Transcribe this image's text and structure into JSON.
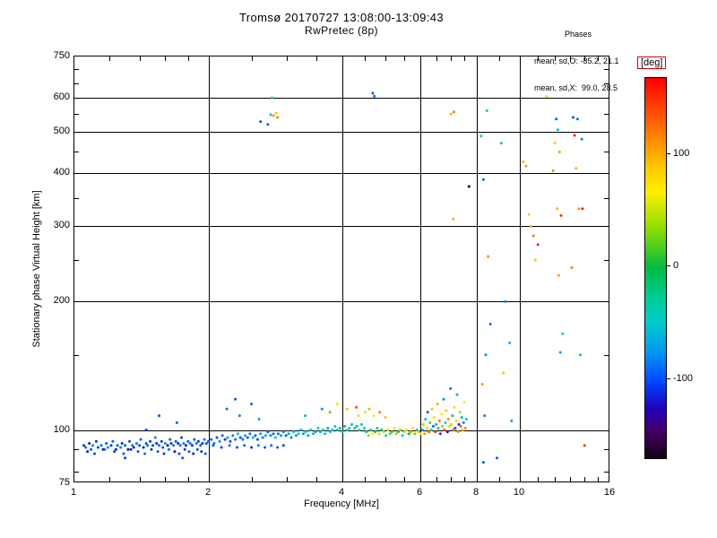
{
  "header": {
    "title": "Tromsø 20170727 13:08:00-13:09:43",
    "subtitle": "RwPretec (8p)"
  },
  "stats": {
    "title": "Phases",
    "line_o": "mean, sd,O: -85.2, 21.1",
    "line_x": "mean, sd,X:  99.0, 28.5"
  },
  "chart_data": {
    "type": "scatter",
    "title": "Tromsø 20170727 13:08:00-13:09:43",
    "subtitle": "RwPretec (8p)",
    "xlabel": "Frequency [MHz]",
    "ylabel": "Stationary phase Virtual Height [km]",
    "x_scale": "log",
    "y_scale": "log",
    "xlim": [
      1,
      16
    ],
    "ylim": [
      75,
      750
    ],
    "x_ticks": [
      1,
      2,
      4,
      6,
      8,
      10,
      16
    ],
    "y_ticks": [
      750,
      600,
      500,
      400,
      300,
      200,
      100,
      75
    ],
    "grid_x": [
      2,
      4,
      6,
      8,
      10
    ],
    "grid_y": [
      100,
      200,
      300,
      400,
      500,
      600
    ],
    "x_minor": [
      1.2,
      1.4,
      1.6,
      1.8,
      2.5,
      3,
      3.5,
      4.5,
      5,
      5.5,
      6.5,
      7,
      7.5,
      9,
      11,
      12,
      13,
      14,
      15
    ],
    "y_minor": [
      80,
      90,
      150,
      250,
      350,
      450,
      550,
      650,
      700
    ],
    "grid": true,
    "legend_position": "none",
    "colorbar": {
      "label": "[deg]",
      "ticks": [
        100,
        0,
        -100
      ],
      "vmin": -172,
      "vmax": 168,
      "stops": [
        {
          "t": 0.0,
          "c": "#ff0000"
        },
        {
          "t": 0.08,
          "c": "#ff4400"
        },
        {
          "t": 0.16,
          "c": "#ff8800"
        },
        {
          "t": 0.24,
          "c": "#ffcc00"
        },
        {
          "t": 0.3,
          "c": "#ffee00"
        },
        {
          "t": 0.4,
          "c": "#88dd00"
        },
        {
          "t": 0.5,
          "c": "#00bb44"
        },
        {
          "t": 0.58,
          "c": "#00cc99"
        },
        {
          "t": 0.64,
          "c": "#00cccc"
        },
        {
          "t": 0.72,
          "c": "#0099ee"
        },
        {
          "t": 0.8,
          "c": "#0044ff"
        },
        {
          "t": 0.87,
          "c": "#2200bb"
        },
        {
          "t": 0.93,
          "c": "#440066"
        },
        {
          "t": 1.0,
          "c": "#140014"
        }
      ]
    },
    "points_format": [
      "frequency_MHz",
      "virtual_height_km",
      "phase_deg"
    ],
    "points": [
      [
        1.05,
        92,
        -110
      ],
      [
        1.06,
        91,
        -95
      ],
      [
        1.08,
        93,
        -120
      ],
      [
        1.09,
        90,
        -100
      ],
      [
        1.1,
        92,
        -85
      ],
      [
        1.12,
        94,
        -115
      ],
      [
        1.13,
        91,
        -105
      ],
      [
        1.15,
        92,
        -90
      ],
      [
        1.16,
        90,
        -125
      ],
      [
        1.18,
        93,
        -100
      ],
      [
        1.19,
        91,
        -80
      ],
      [
        1.21,
        92,
        -110
      ],
      [
        1.22,
        94,
        -95
      ],
      [
        1.24,
        90,
        -120
      ],
      [
        1.25,
        92,
        -100
      ],
      [
        1.27,
        91,
        -88
      ],
      [
        1.28,
        93,
        -112
      ],
      [
        1.3,
        92,
        -98
      ],
      [
        1.32,
        90,
        -130
      ],
      [
        1.33,
        94,
        -105
      ],
      [
        1.35,
        92,
        -92
      ],
      [
        1.36,
        91,
        -115
      ],
      [
        1.38,
        93,
        -85
      ],
      [
        1.4,
        92,
        -108
      ],
      [
        1.41,
        95,
        -96
      ],
      [
        1.43,
        91,
        -122
      ],
      [
        1.45,
        93,
        -100
      ],
      [
        1.46,
        92,
        -90
      ],
      [
        1.48,
        94,
        -112
      ],
      [
        1.5,
        92,
        -104
      ],
      [
        1.52,
        96,
        -86
      ],
      [
        1.53,
        93,
        -118
      ],
      [
        1.55,
        92,
        -95
      ],
      [
        1.57,
        94,
        -108
      ],
      [
        1.58,
        91,
        -100
      ],
      [
        1.6,
        93,
        -80
      ],
      [
        1.62,
        92,
        -125
      ],
      [
        1.64,
        95,
        -98
      ],
      [
        1.65,
        93,
        -110
      ],
      [
        1.67,
        92,
        -88
      ],
      [
        1.69,
        94,
        -102
      ],
      [
        1.71,
        93,
        -116
      ],
      [
        1.73,
        92,
        -94
      ],
      [
        1.74,
        96,
        -106
      ],
      [
        1.76,
        93,
        -84
      ],
      [
        1.78,
        92,
        -120
      ],
      [
        1.8,
        94,
        -100
      ],
      [
        1.82,
        93,
        -92
      ],
      [
        1.84,
        92,
        -112
      ],
      [
        1.86,
        95,
        -98
      ],
      [
        1.88,
        93,
        -86
      ],
      [
        1.9,
        94,
        -108
      ],
      [
        1.92,
        92,
        -96
      ],
      [
        1.94,
        93,
        -118
      ],
      [
        1.96,
        95,
        -90
      ],
      [
        1.98,
        93,
        -104
      ],
      [
        2.0,
        94,
        -98
      ],
      [
        1.07,
        89,
        -118
      ],
      [
        1.11,
        88,
        -102
      ],
      [
        1.17,
        90,
        -95
      ],
      [
        1.23,
        89,
        -112
      ],
      [
        1.29,
        88,
        -98
      ],
      [
        1.34,
        90,
        -120
      ],
      [
        1.39,
        89,
        -104
      ],
      [
        1.44,
        88,
        -92
      ],
      [
        1.49,
        90,
        -115
      ],
      [
        1.54,
        89,
        -100
      ],
      [
        1.59,
        88,
        -108
      ],
      [
        1.63,
        90,
        -96
      ],
      [
        1.68,
        89,
        -122
      ],
      [
        1.72,
        88,
        -102
      ],
      [
        1.77,
        90,
        -110
      ],
      [
        1.81,
        89,
        -94
      ],
      [
        1.85,
        88,
        -116
      ],
      [
        1.89,
        90,
        -100
      ],
      [
        1.93,
        89,
        -108
      ],
      [
        1.97,
        88,
        -96
      ],
      [
        2.03,
        95,
        -100
      ],
      [
        2.06,
        93,
        -90
      ],
      [
        2.09,
        96,
        -105
      ],
      [
        2.12,
        94,
        -80
      ],
      [
        2.15,
        97,
        -95
      ],
      [
        2.18,
        95,
        -110
      ],
      [
        2.21,
        96,
        -70
      ],
      [
        2.24,
        94,
        -100
      ],
      [
        2.27,
        97,
        -85
      ],
      [
        2.3,
        95,
        -95
      ],
      [
        2.33,
        98,
        -60
      ],
      [
        2.36,
        96,
        -105
      ],
      [
        2.39,
        95,
        -90
      ],
      [
        2.42,
        97,
        -75
      ],
      [
        2.45,
        96,
        -100
      ],
      [
        2.48,
        98,
        -88
      ],
      [
        2.52,
        96,
        -65
      ],
      [
        2.55,
        97,
        -95
      ],
      [
        2.58,
        95,
        -105
      ],
      [
        2.62,
        98,
        -80
      ],
      [
        2.65,
        96,
        -92
      ],
      [
        2.69,
        97,
        -70
      ],
      [
        2.72,
        99,
        -100
      ],
      [
        2.76,
        97,
        -85
      ],
      [
        2.8,
        98,
        -95
      ],
      [
        2.83,
        96,
        -60
      ],
      [
        2.87,
        98,
        -90
      ],
      [
        2.91,
        97,
        -75
      ],
      [
        2.95,
        99,
        -88
      ],
      [
        2.99,
        97,
        -95
      ],
      [
        2.05,
        92,
        -98
      ],
      [
        2.14,
        91,
        -104
      ],
      [
        2.23,
        92,
        -88
      ],
      [
        2.32,
        91,
        -100
      ],
      [
        2.41,
        92,
        -95
      ],
      [
        2.5,
        91,
        -108
      ],
      [
        2.59,
        92,
        -85
      ],
      [
        2.68,
        91,
        -100
      ],
      [
        2.77,
        92,
        -92
      ],
      [
        2.86,
        91,
        -98
      ],
      [
        2.95,
        92,
        -105
      ],
      [
        1.3,
        86,
        -105
      ],
      [
        1.75,
        86,
        -100
      ],
      [
        1.45,
        100,
        -110
      ],
      [
        1.55,
        108,
        -100
      ],
      [
        1.7,
        104,
        -95
      ],
      [
        2.2,
        112,
        -90
      ],
      [
        2.3,
        118,
        -100
      ],
      [
        2.35,
        108,
        -85
      ],
      [
        2.5,
        115,
        -95
      ],
      [
        2.6,
        106,
        -70
      ],
      [
        3.3,
        108,
        -60
      ],
      [
        3.6,
        112,
        -80
      ],
      [
        3.75,
        110,
        20
      ],
      [
        3.9,
        115,
        60
      ],
      [
        4.1,
        112,
        90
      ],
      [
        4.3,
        113,
        140
      ],
      [
        4.35,
        108,
        80
      ],
      [
        4.5,
        110,
        50
      ],
      [
        4.6,
        112,
        100
      ],
      [
        4.7,
        108,
        70
      ],
      [
        4.85,
        110,
        120
      ],
      [
        5.0,
        107,
        90
      ],
      [
        3.03,
        98,
        -70
      ],
      [
        3.07,
        96,
        -85
      ],
      [
        3.11,
        99,
        -55
      ],
      [
        3.15,
        97,
        -75
      ],
      [
        3.19,
        98,
        -40
      ],
      [
        3.23,
        100,
        -65
      ],
      [
        3.27,
        98,
        -80
      ],
      [
        3.31,
        99,
        -50
      ],
      [
        3.35,
        97,
        -70
      ],
      [
        3.4,
        100,
        -30
      ],
      [
        3.44,
        98,
        -60
      ],
      [
        3.48,
        99,
        -75
      ],
      [
        3.53,
        101,
        -45
      ],
      [
        3.57,
        99,
        -65
      ],
      [
        3.62,
        100,
        -20
      ],
      [
        3.66,
        98,
        -55
      ],
      [
        3.71,
        101,
        -70
      ],
      [
        3.76,
        99,
        -35
      ],
      [
        3.8,
        100,
        -60
      ],
      [
        3.85,
        102,
        -50
      ],
      [
        3.9,
        100,
        -25
      ],
      [
        3.95,
        101,
        -65
      ],
      [
        4.0,
        99,
        -45
      ],
      [
        4.05,
        102,
        -10
      ],
      [
        4.1,
        100,
        -55
      ],
      [
        4.15,
        101,
        -30
      ],
      [
        4.2,
        103,
        -60
      ],
      [
        4.26,
        101,
        -40
      ],
      [
        4.31,
        102,
        0
      ],
      [
        4.37,
        100,
        -50
      ],
      [
        4.42,
        103,
        -20
      ],
      [
        4.48,
        101,
        -35
      ],
      [
        4.53,
        99,
        -20
      ],
      [
        4.58,
        97,
        40
      ],
      [
        4.63,
        100,
        -45
      ],
      [
        4.68,
        98,
        70
      ],
      [
        4.74,
        99,
        10
      ],
      [
        4.79,
        101,
        -30
      ],
      [
        4.84,
        98,
        90
      ],
      [
        4.9,
        100,
        -10
      ],
      [
        4.95,
        99,
        50
      ],
      [
        5.01,
        97,
        -40
      ],
      [
        5.06,
        100,
        80
      ],
      [
        5.12,
        98,
        20
      ],
      [
        5.17,
        99,
        -25
      ],
      [
        5.23,
        101,
        60
      ],
      [
        5.28,
        98,
        100
      ],
      [
        5.34,
        99,
        -15
      ],
      [
        5.4,
        100,
        35
      ],
      [
        5.46,
        97,
        -50
      ],
      [
        5.52,
        99,
        85
      ],
      [
        5.58,
        100,
        55
      ],
      [
        5.64,
        98,
        -5
      ],
      [
        5.7,
        99,
        110
      ],
      [
        5.76,
        101,
        75
      ],
      [
        5.82,
        98,
        25
      ],
      [
        5.88,
        100,
        -35
      ],
      [
        5.94,
        99,
        95
      ],
      [
        6.0,
        98,
        65
      ],
      [
        6.05,
        100,
        -80
      ],
      [
        6.08,
        103,
        40
      ],
      [
        6.12,
        98,
        110
      ],
      [
        6.15,
        106,
        -60
      ],
      [
        6.19,
        101,
        80
      ],
      [
        6.22,
        110,
        -100
      ],
      [
        6.26,
        99,
        130
      ],
      [
        6.29,
        104,
        20
      ],
      [
        6.33,
        100,
        -40
      ],
      [
        6.36,
        112,
        90
      ],
      [
        6.4,
        102,
        -90
      ],
      [
        6.43,
        107,
        60
      ],
      [
        6.47,
        99,
        150
      ],
      [
        6.5,
        103,
        -70
      ],
      [
        6.54,
        115,
        100
      ],
      [
        6.57,
        101,
        -20
      ],
      [
        6.61,
        105,
        120
      ],
      [
        6.64,
        98,
        -110
      ],
      [
        6.68,
        109,
        70
      ],
      [
        6.71,
        102,
        30
      ],
      [
        6.75,
        118,
        -80
      ],
      [
        6.78,
        100,
        140
      ],
      [
        6.82,
        104,
        -50
      ],
      [
        6.85,
        111,
        85
      ],
      [
        6.89,
        99,
        -120
      ],
      [
        6.92,
        106,
        110
      ],
      [
        6.96,
        102,
        50
      ],
      [
        7.0,
        125,
        -90
      ],
      [
        7.03,
        103,
        95
      ],
      [
        7.07,
        108,
        -30
      ],
      [
        7.1,
        100,
        125
      ],
      [
        7.14,
        113,
        60
      ],
      [
        7.17,
        101,
        -100
      ],
      [
        7.21,
        105,
        80
      ],
      [
        7.24,
        121,
        -70
      ],
      [
        7.28,
        99,
        105
      ],
      [
        7.31,
        103,
        -110
      ],
      [
        7.35,
        110,
        40
      ],
      [
        7.38,
        102,
        130
      ],
      [
        7.42,
        107,
        -60
      ],
      [
        7.45,
        100,
        90
      ],
      [
        7.49,
        104,
        -85
      ],
      [
        7.52,
        116,
        70
      ],
      [
        7.56,
        101,
        115
      ],
      [
        7.6,
        106,
        -45
      ],
      [
        2.62,
        528,
        -100
      ],
      [
        2.72,
        520,
        -95
      ],
      [
        2.76,
        548,
        -50
      ],
      [
        2.8,
        545,
        110
      ],
      [
        2.84,
        552,
        85
      ],
      [
        2.78,
        600,
        -55
      ],
      [
        2.86,
        540,
        120
      ],
      [
        4.68,
        615,
        -100
      ],
      [
        4.72,
        605,
        -90
      ],
      [
        7.02,
        550,
        95
      ],
      [
        7.12,
        556,
        115
      ],
      [
        7.1,
        312,
        100
      ],
      [
        7.7,
        372,
        -168
      ],
      [
        8.2,
        488,
        -45
      ],
      [
        8.3,
        386,
        -95
      ],
      [
        8.25,
        128,
        105
      ],
      [
        8.35,
        108,
        -85
      ],
      [
        8.3,
        84,
        -100
      ],
      [
        8.45,
        560,
        -40
      ],
      [
        8.6,
        177,
        -90
      ],
      [
        8.5,
        255,
        110
      ],
      [
        8.4,
        150,
        -80
      ],
      [
        9.1,
        470,
        -45
      ],
      [
        9.3,
        200,
        -85
      ],
      [
        9.5,
        160,
        -60
      ],
      [
        9.2,
        136,
        90
      ],
      [
        9.6,
        105,
        -75
      ],
      [
        8.9,
        86,
        -95
      ],
      [
        10.2,
        425,
        95
      ],
      [
        10.35,
        415,
        110
      ],
      [
        10.5,
        320,
        85
      ],
      [
        10.6,
        300,
        100
      ],
      [
        10.75,
        285,
        120
      ],
      [
        11.0,
        272,
        155
      ],
      [
        10.85,
        250,
        90
      ],
      [
        11.5,
        605,
        80
      ],
      [
        12.1,
        535,
        -95
      ],
      [
        12.2,
        505,
        -55
      ],
      [
        12.0,
        470,
        90
      ],
      [
        12.3,
        448,
        30
      ],
      [
        11.9,
        405,
        20
      ],
      [
        12.15,
        330,
        95
      ],
      [
        12.4,
        318,
        150
      ],
      [
        12.25,
        230,
        105
      ],
      [
        12.5,
        168,
        -50
      ],
      [
        12.35,
        152,
        -70
      ],
      [
        13.2,
        540,
        -100
      ],
      [
        13.5,
        535,
        -90
      ],
      [
        13.3,
        490,
        160
      ],
      [
        13.8,
        480,
        -85
      ],
      [
        13.4,
        410,
        95
      ],
      [
        13.6,
        330,
        110
      ],
      [
        13.85,
        330,
        160
      ],
      [
        13.1,
        240,
        120
      ],
      [
        14.0,
        92,
        150
      ],
      [
        13.7,
        150,
        -60
      ]
    ]
  }
}
